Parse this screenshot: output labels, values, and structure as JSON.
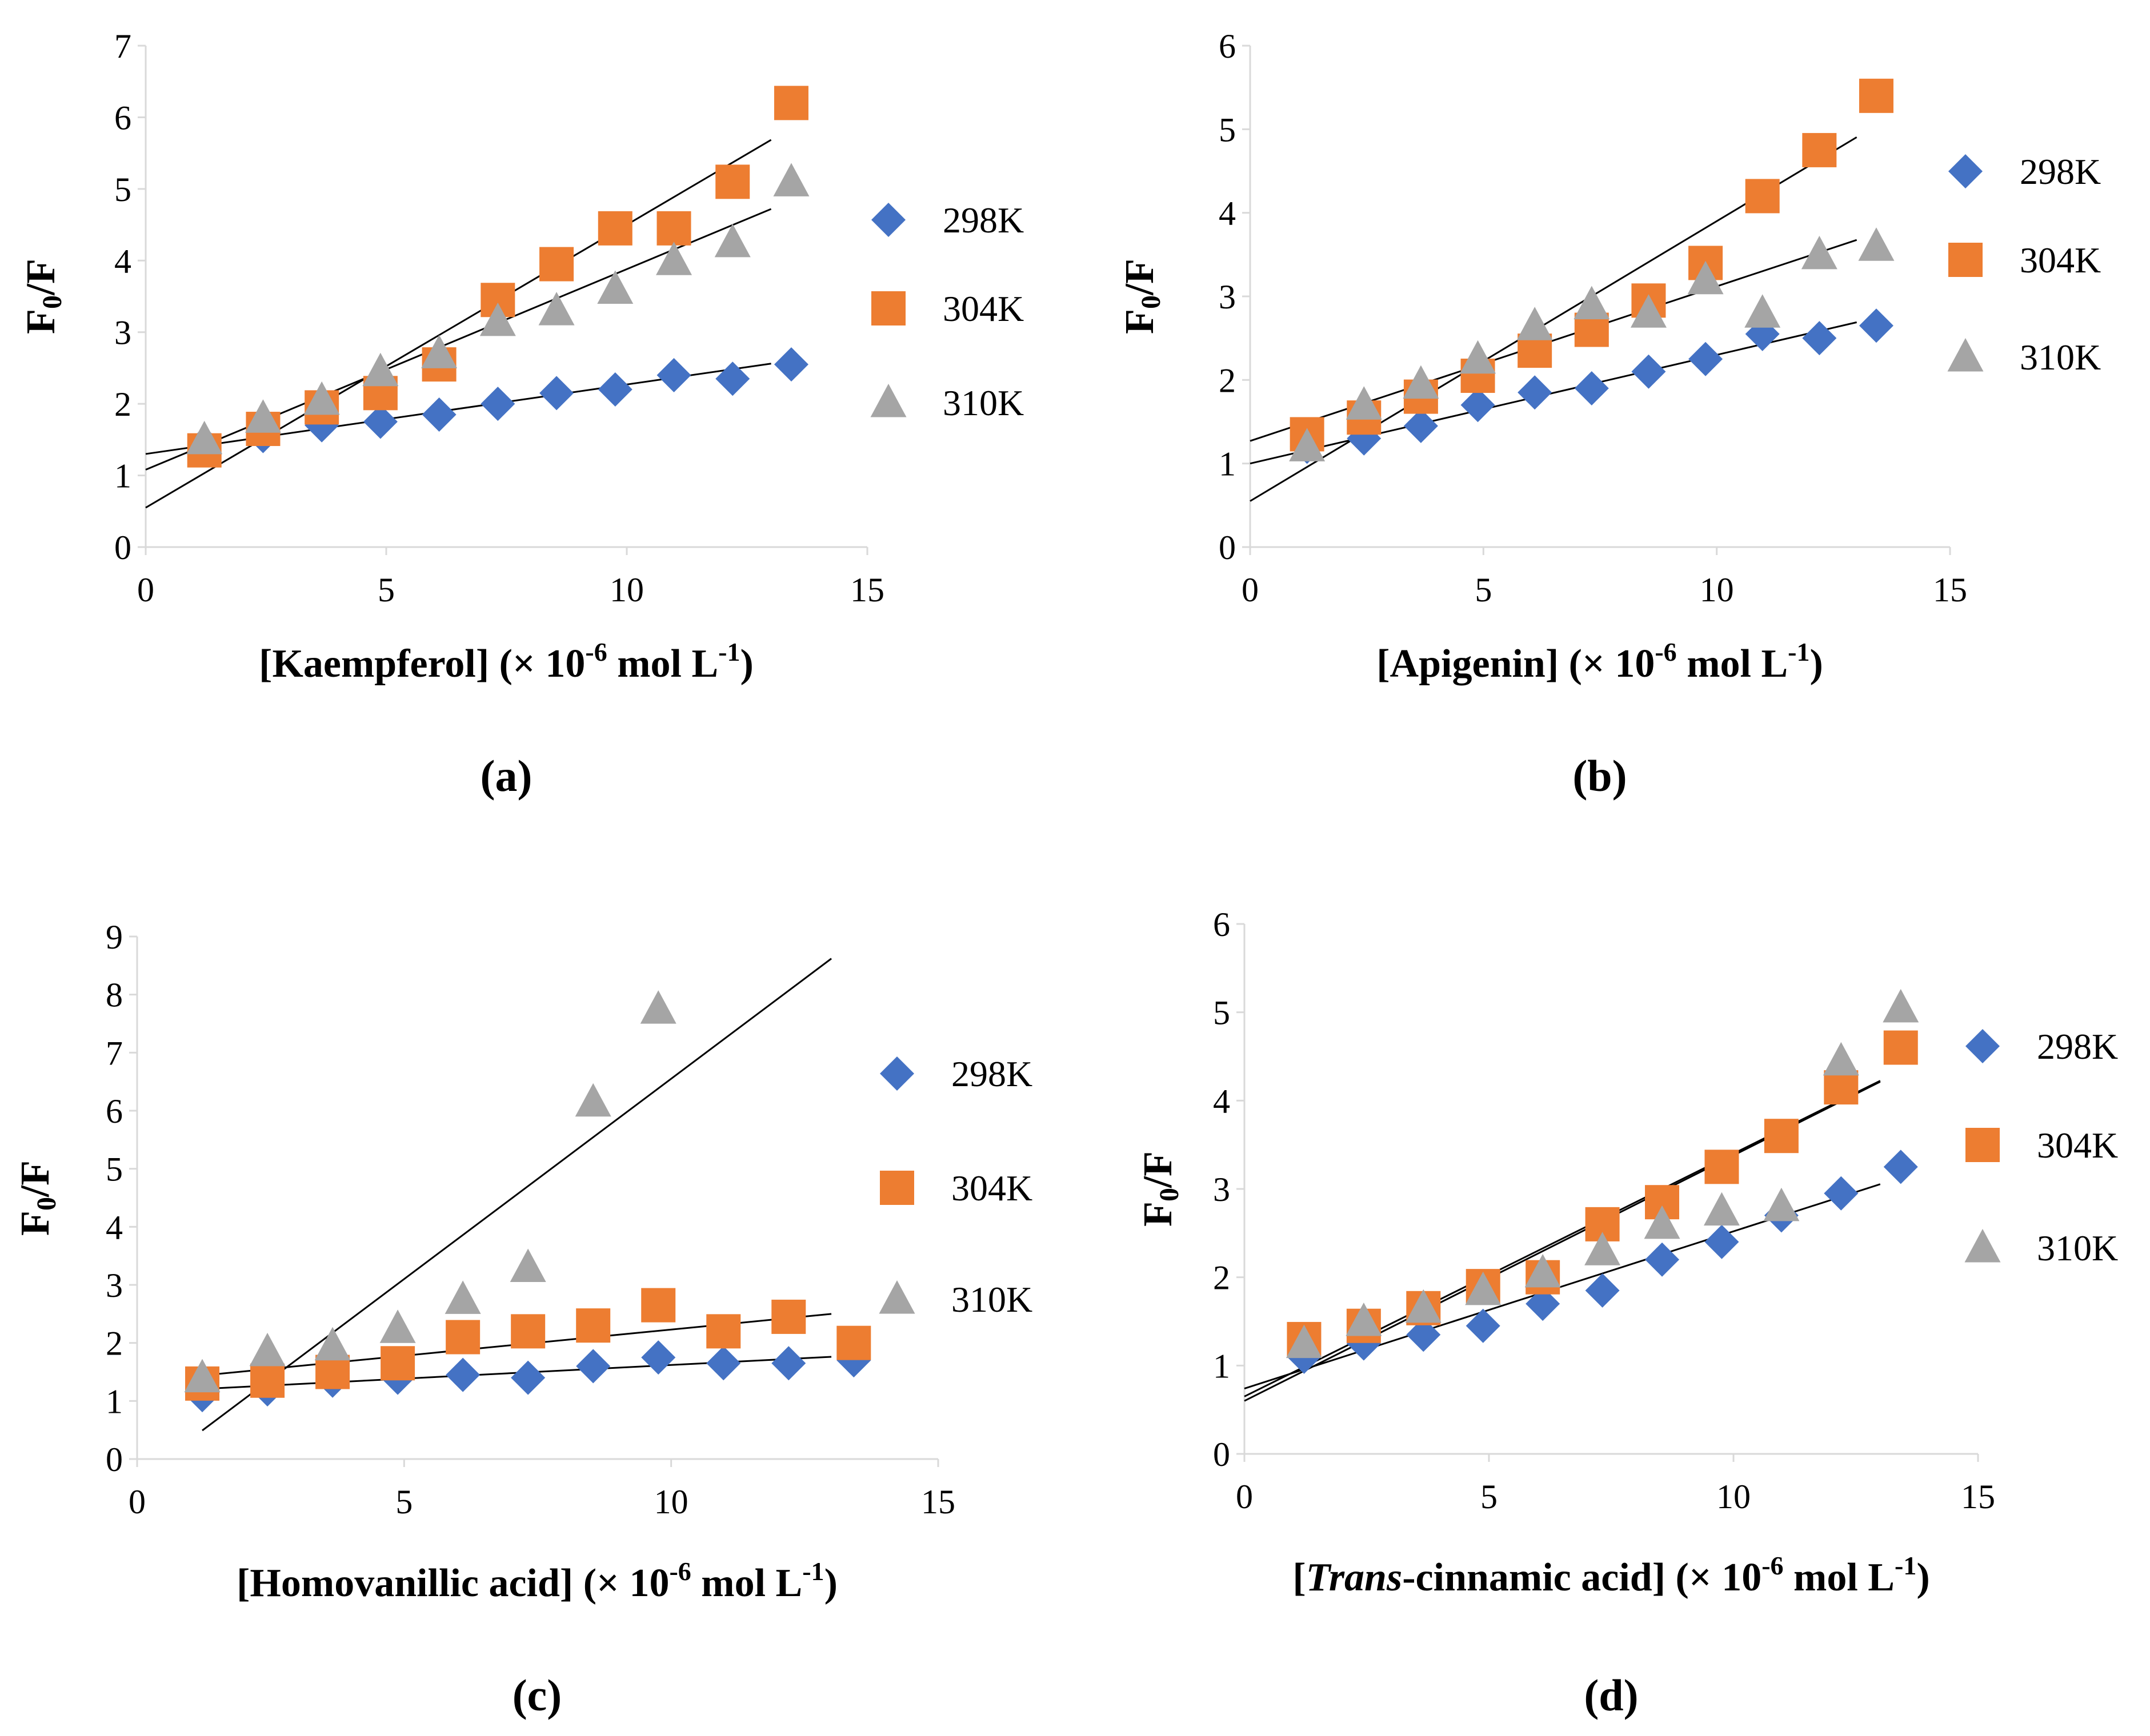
{
  "colors": {
    "298K": "#4472C4",
    "304K": "#ED7D31",
    "310K": "#A5A5A5",
    "trendline": "#000000",
    "axis": "#D9D9D9"
  },
  "icons": {
    "298K": "diamond-marker",
    "304K": "square-marker",
    "310K": "triangle-marker"
  },
  "chart_data": [
    {
      "panel": "(a)",
      "type": "scatter",
      "xlim": [
        0,
        15
      ],
      "ylim": [
        0,
        7
      ],
      "x_ticks": [
        "0",
        "5",
        "10",
        "15"
      ],
      "y_ticks": [
        "0",
        "1",
        "2",
        "3",
        "4",
        "5",
        "6",
        "7"
      ],
      "ylabel": {
        "main": "F",
        "sub": "0",
        "tail": "/F"
      },
      "xlabel": {
        "pre": "[Kaempferol] (× 10",
        "sup": "-6",
        "mid": " mol L",
        "sup2": "-1",
        "post": ")"
      },
      "legend": [
        "298K",
        "304K",
        "310K"
      ],
      "x": [
        1.22,
        2.44,
        3.66,
        4.88,
        6.1,
        7.32,
        8.54,
        9.76,
        10.98,
        12.2,
        13.42
      ],
      "series": [
        {
          "name": "298K",
          "values": [
            1.45,
            1.55,
            1.7,
            1.75,
            1.85,
            2.0,
            2.15,
            2.2,
            2.4,
            2.35,
            2.55
          ],
          "trend": [
            1.3,
            0.097
          ]
        },
        {
          "name": "304K",
          "values": [
            1.35,
            1.65,
            1.95,
            2.15,
            2.55,
            3.45,
            3.95,
            4.45,
            4.45,
            5.1,
            6.2
          ],
          "trend": [
            0.55,
            0.395
          ]
        },
        {
          "name": "310K",
          "values": [
            1.5,
            1.8,
            2.05,
            2.45,
            2.7,
            3.15,
            3.3,
            3.6,
            4.0,
            4.25,
            5.1
          ],
          "trend": [
            1.08,
            0.28
          ]
        }
      ]
    },
    {
      "panel": "(b)",
      "type": "scatter",
      "xlim": [
        0,
        15
      ],
      "ylim": [
        0,
        6
      ],
      "x_ticks": [
        "0",
        "5",
        "10",
        "15"
      ],
      "y_ticks": [
        "0",
        "1",
        "2",
        "3",
        "4",
        "5",
        "6"
      ],
      "ylabel": {
        "main": "F",
        "sub": "0",
        "tail": "/F"
      },
      "xlabel": {
        "pre": "[Apigenin] (× 10",
        "sup": "-6",
        "mid": " mol L",
        "sup2": "-1",
        "post": ")"
      },
      "legend": [
        "298K",
        "304K",
        "310K"
      ],
      "x": [
        1.22,
        2.44,
        3.66,
        4.88,
        6.1,
        7.32,
        8.54,
        9.76,
        10.98,
        12.2,
        13.42
      ],
      "series": [
        {
          "name": "298K",
          "values": [
            1.2,
            1.3,
            1.45,
            1.7,
            1.85,
            1.9,
            2.1,
            2.25,
            2.55,
            2.5,
            2.65
          ],
          "trend": [
            1.0,
            0.13
          ]
        },
        {
          "name": "304K",
          "values": [
            1.35,
            1.55,
            1.8,
            2.05,
            2.35,
            2.6,
            2.95,
            3.4,
            4.2,
            4.75,
            5.4
          ],
          "trend": [
            0.55,
            0.335
          ]
        },
        {
          "name": "310K",
          "values": [
            1.2,
            1.7,
            1.95,
            2.25,
            2.65,
            2.9,
            2.8,
            3.2,
            2.8,
            3.5,
            3.6
          ],
          "trend": [
            1.27,
            0.185
          ]
        }
      ]
    },
    {
      "panel": "(c)",
      "type": "scatter",
      "xlim": [
        0,
        15
      ],
      "ylim": [
        0,
        9
      ],
      "x_ticks": [
        "0",
        "5",
        "10",
        "15"
      ],
      "y_ticks": [
        "0",
        "1",
        "2",
        "3",
        "4",
        "5",
        "6",
        "7",
        "8",
        "9"
      ],
      "ylabel": {
        "main": "F",
        "sub": "0",
        "tail": "/F"
      },
      "xlabel": {
        "pre": "[Homovanillic acid] (× 10",
        "sup": "-6",
        "mid": " mol L",
        "sup2": "-1",
        "post": ")"
      },
      "legend": [
        "298K",
        "304K",
        "310K"
      ],
      "x": [
        1.22,
        2.44,
        3.66,
        4.88,
        6.1,
        7.32,
        8.54,
        9.76,
        10.98,
        12.2,
        13.42
      ],
      "series": [
        {
          "name": "298K",
          "values": [
            1.1,
            1.2,
            1.35,
            1.4,
            1.45,
            1.4,
            1.6,
            1.75,
            1.65,
            1.65,
            1.7
          ],
          "trend": [
            1.15,
            0.047
          ]
        },
        {
          "name": "304K",
          "values": [
            1.3,
            1.35,
            1.5,
            1.65,
            2.1,
            2.2,
            2.3,
            2.65,
            2.2,
            2.45,
            2.0
          ],
          "trend": [
            1.33,
            0.09
          ]
        },
        {
          "name": "310K",
          "values": [
            1.4,
            1.85,
            1.95,
            2.25,
            2.75,
            3.3,
            6.15,
            7.75
          ],
          "trend": [
            -0.35,
            0.69
          ]
        }
      ]
    },
    {
      "panel": "(d)",
      "type": "scatter",
      "xlim": [
        0,
        15
      ],
      "ylim": [
        0,
        6
      ],
      "x_ticks": [
        "0",
        "5",
        "10",
        "15"
      ],
      "y_ticks": [
        "0",
        "1",
        "2",
        "3",
        "4",
        "5",
        "6"
      ],
      "ylabel": {
        "main": "F",
        "sub": "0",
        "tail": "/F"
      },
      "xlabel": {
        "pre": "[",
        "italic": "Trans",
        "pre2": "-cinnamic acid] (× 10",
        "sup": "-6",
        "mid": "  mol L",
        "sup2": "-1",
        "post": ")"
      },
      "legend": [
        "298K",
        "304K",
        "310K"
      ],
      "x": [
        1.22,
        2.44,
        3.66,
        4.88,
        6.1,
        7.32,
        8.54,
        9.76,
        10.98,
        12.2,
        13.42
      ],
      "series": [
        {
          "name": "298K",
          "values": [
            1.1,
            1.25,
            1.35,
            1.45,
            1.7,
            1.85,
            2.2,
            2.4,
            2.7,
            2.95,
            3.25
          ],
          "trend": [
            0.74,
            0.178
          ]
        },
        {
          "name": "304K",
          "values": [
            1.3,
            1.45,
            1.65,
            1.9,
            2.0,
            2.6,
            2.85,
            3.25,
            3.6,
            4.15,
            4.6
          ],
          "trend": [
            0.65,
            0.275
          ]
        },
        {
          "name": "310K",
          "values": [
            1.25,
            1.5,
            1.65,
            1.85,
            2.05,
            2.3,
            2.6,
            2.75,
            2.8,
            4.45,
            5.05
          ],
          "trend": [
            0.6,
            0.278
          ]
        }
      ]
    }
  ]
}
